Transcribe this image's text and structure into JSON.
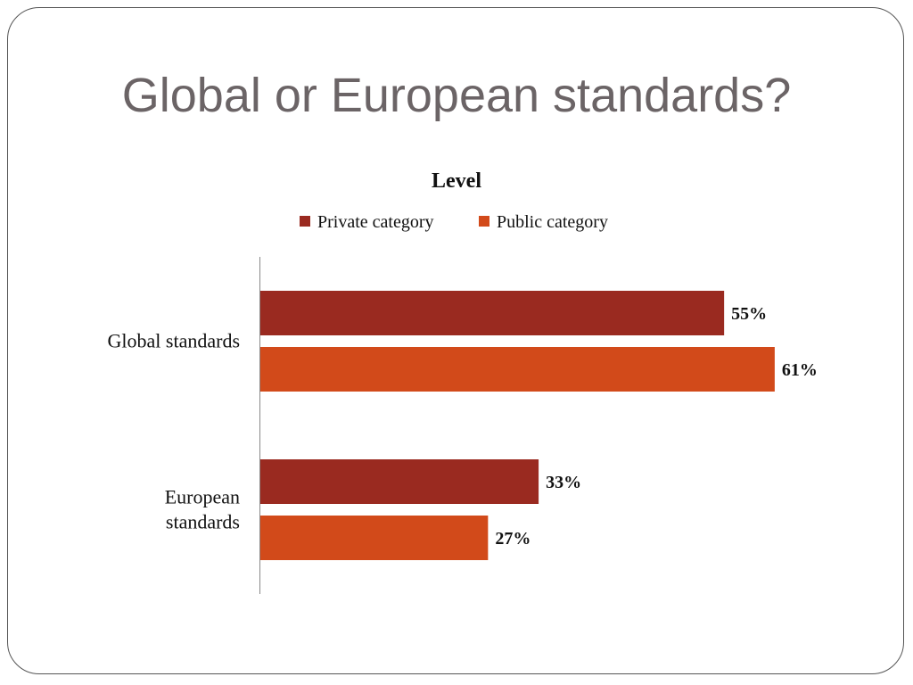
{
  "slide": {
    "title": "Global or European standards?"
  },
  "chart_data": {
    "type": "bar",
    "orientation": "horizontal",
    "title": "Level",
    "categories": [
      "Global standards",
      "European standards"
    ],
    "series": [
      {
        "name": "Private category",
        "values": [
          55,
          33
        ],
        "labels": [
          "55%",
          "33%"
        ],
        "color": "#9a2a20"
      },
      {
        "name": "Public category",
        "values": [
          61,
          27
        ],
        "labels": [
          "61%",
          "27%"
        ],
        "color": "#d24a1a"
      }
    ],
    "xlim": [
      0,
      70
    ],
    "legend_position": "top",
    "grid": false
  }
}
